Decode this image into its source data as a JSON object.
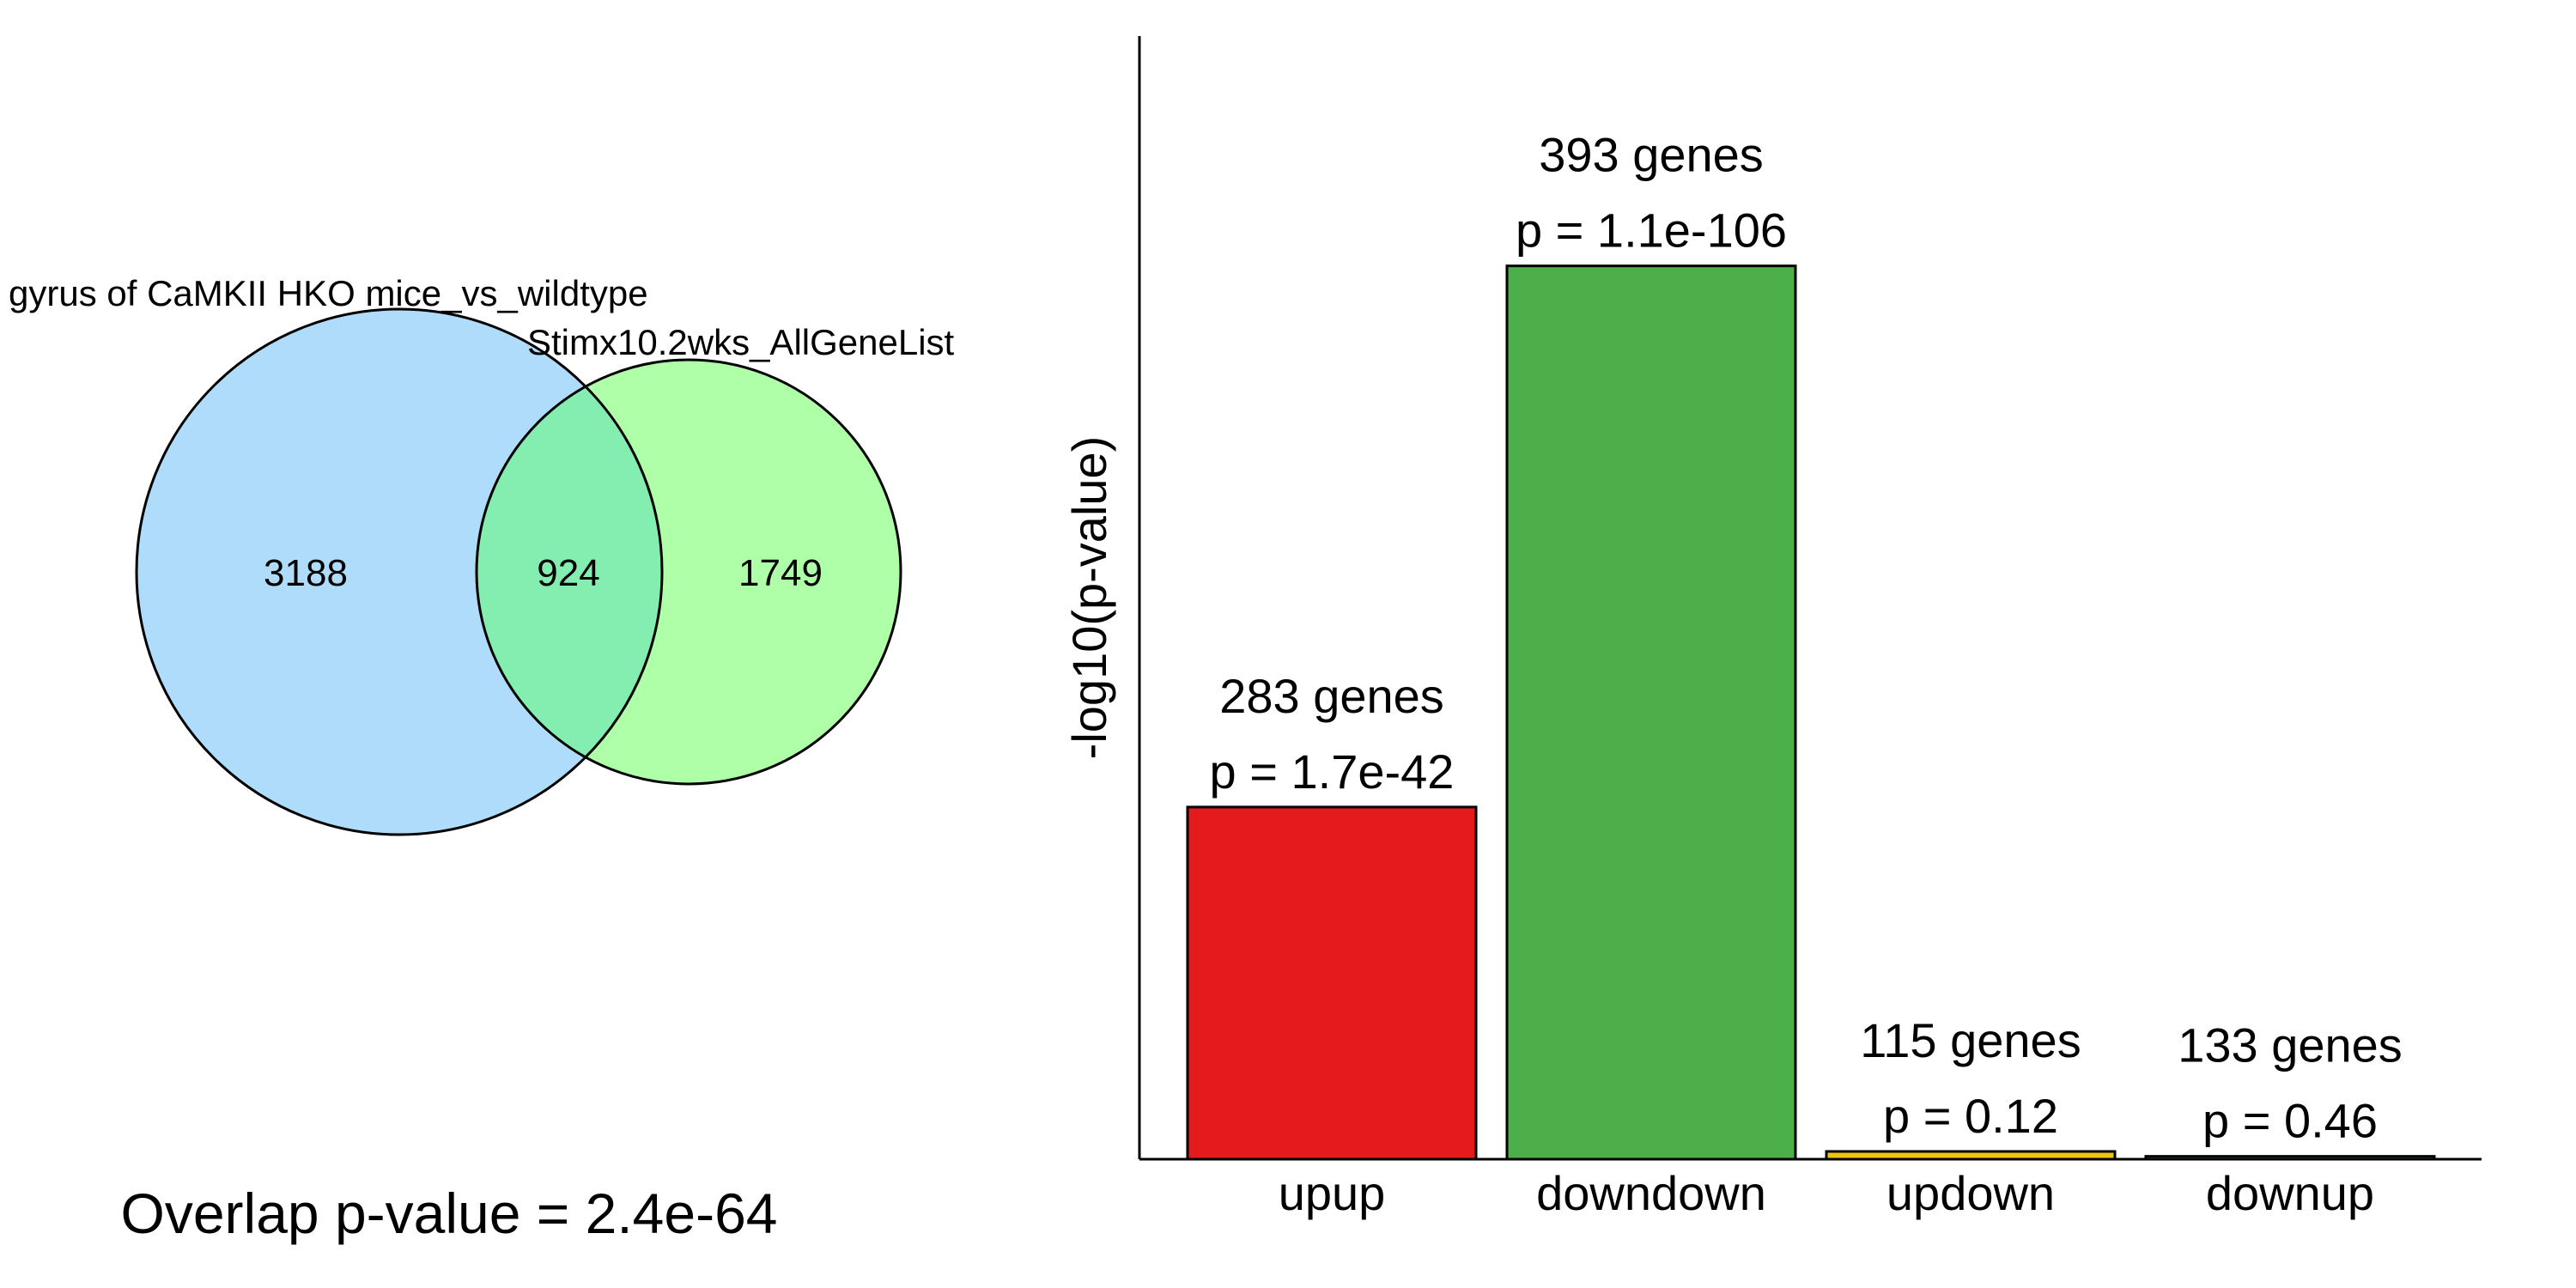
{
  "venn": {
    "set_a_label": "gyrus of CaMKII HKO mice_vs_wildtype",
    "set_b_label": "Stimx10.2wks_AllGeneList",
    "only_a": "3188",
    "both": "924",
    "only_b": "1749",
    "overlap_text": "Overlap p-value = 2.4e-64",
    "colors": {
      "a": "#aedcfa",
      "b": "#afffa8",
      "overlap": "#84edb0",
      "stroke": "#000000"
    }
  },
  "chart_data": {
    "type": "bar",
    "categories": [
      "upup",
      "downdown",
      "updown",
      "downup"
    ],
    "values": [
      41.77,
      105.96,
      0.92,
      0.34
    ],
    "counts": [
      "283 genes",
      "393 genes",
      "115 genes",
      "133 genes"
    ],
    "pvalues": [
      "p = 1.7e-42",
      "p = 1.1e-106",
      "p = 0.12",
      "p = 0.46"
    ],
    "colors": [
      "#e41a1c",
      "#4daf4a",
      "#f1c40f",
      "#377eb8"
    ],
    "xlabel": "",
    "ylabel": "-log10(p-value)",
    "ylim": [
      0,
      137.5
    ],
    "grid": false
  }
}
